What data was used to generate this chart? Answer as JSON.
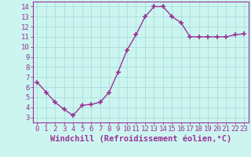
{
  "x": [
    0,
    1,
    2,
    3,
    4,
    5,
    6,
    7,
    8,
    9,
    10,
    11,
    12,
    13,
    14,
    15,
    16,
    17,
    18,
    19,
    20,
    21,
    22,
    23
  ],
  "y": [
    6.5,
    5.5,
    4.5,
    3.8,
    3.2,
    4.2,
    4.3,
    4.5,
    5.5,
    7.5,
    9.7,
    11.2,
    13.0,
    14.0,
    14.0,
    13.0,
    12.4,
    11.0,
    11.0,
    11.0,
    11.0,
    11.0,
    11.2,
    11.3
  ],
  "line_color": "#993399",
  "marker": "+",
  "marker_size": 4,
  "marker_lw": 1.2,
  "background_color": "#ccf5f0",
  "grid_color": "#aadddd",
  "xlabel": "Windchill (Refroidissement éolien,°C)",
  "xlim": [
    -0.5,
    23.5
  ],
  "ylim": [
    2.5,
    14.5
  ],
  "yticks": [
    3,
    4,
    5,
    6,
    7,
    8,
    9,
    10,
    11,
    12,
    13,
    14
  ],
  "xticks": [
    0,
    1,
    2,
    3,
    4,
    5,
    6,
    7,
    8,
    9,
    10,
    11,
    12,
    13,
    14,
    15,
    16,
    17,
    18,
    19,
    20,
    21,
    22,
    23
  ],
  "tick_label_fontsize": 6.5,
  "xlabel_fontsize": 7.5,
  "axis_label_color": "#993399",
  "tick_color": "#993399",
  "spine_color": "#993399",
  "line_width": 1.0
}
